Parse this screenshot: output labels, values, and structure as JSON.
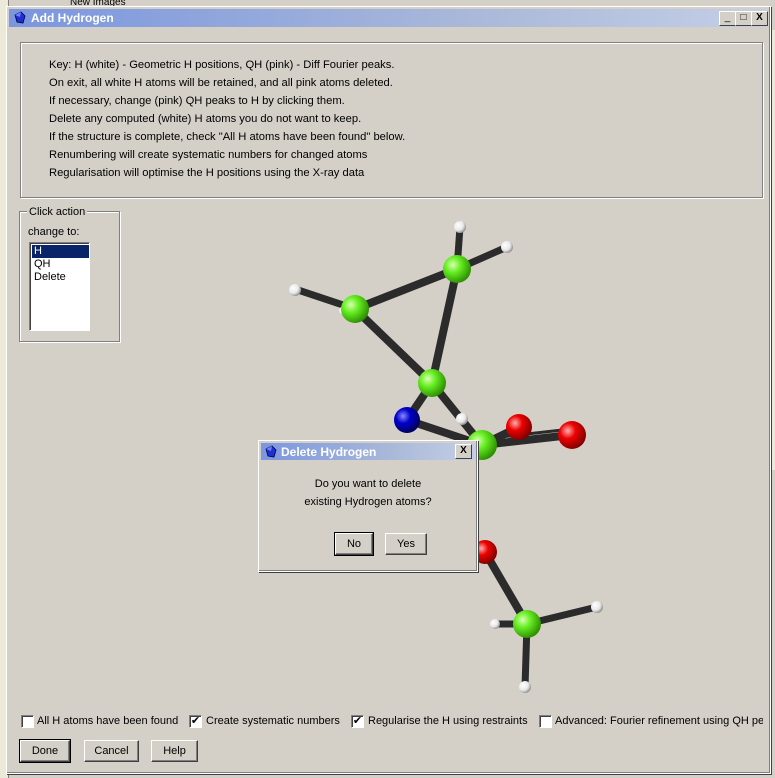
{
  "background": {
    "top_text": "New Images"
  },
  "window": {
    "title": "Add Hydrogen",
    "controls": {
      "minimize": "_",
      "maximize": "□",
      "close": "X"
    }
  },
  "info": {
    "lines": [
      "Key: H (white) - Geometric H positions, QH (pink) - Diff Fourier peaks.",
      "On exit, all white H atoms will be retained, and all pink atoms deleted.",
      "If necessary, change (pink) QH peaks to H by clicking them.",
      "Delete any computed (white) H atoms you do not want to keep.",
      "If the structure is complete, check \"All H atoms have been found\" below.",
      "Renumbering will create systematic numbers for changed atoms",
      "Regularisation will optimise the H positions using the X-ray data"
    ]
  },
  "click_action": {
    "legend": "Click action",
    "subtitle": "change to:",
    "options": [
      "H",
      "QH",
      "Delete"
    ],
    "selected": "H"
  },
  "dialog": {
    "title": "Delete Hydrogen",
    "message_line1": "Do you want to delete",
    "message_line2": "existing Hydrogen atoms?",
    "no_label": "No",
    "yes_label": "Yes",
    "close": "X"
  },
  "options": {
    "all_h_found": {
      "label": "All H atoms have been found",
      "checked": false
    },
    "systematic_numbers": {
      "label": "Create systematic numbers",
      "checked": true
    },
    "regularise": {
      "label": "Regularise the H using restraints",
      "checked": true
    },
    "advanced": {
      "label": "Advanced: Fourier refinement using QH pe",
      "checked": false
    }
  },
  "buttons": {
    "done": "Done",
    "cancel": "Cancel",
    "help": "Help"
  },
  "colors": {
    "carbon": "#66ee22",
    "hydrogen": "#ffffff",
    "nitrogen": "#0000cc",
    "oxygen": "#ee0000",
    "selection": "#0a246a"
  }
}
